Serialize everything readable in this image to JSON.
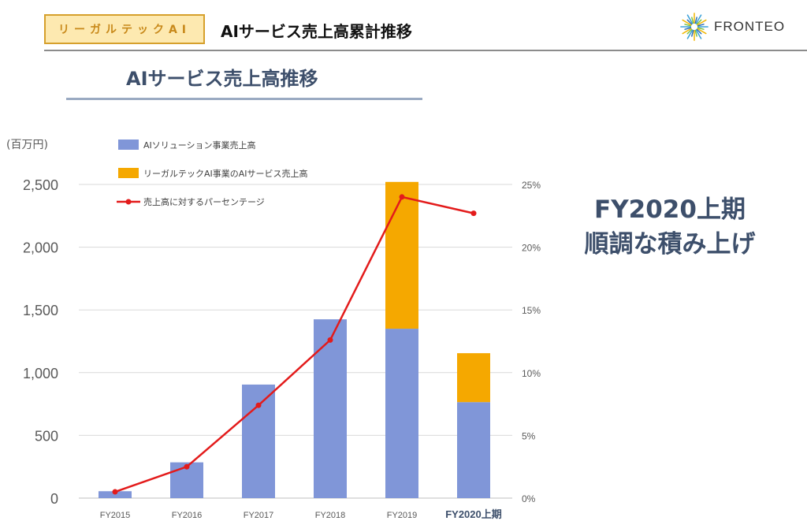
{
  "header": {
    "badge": "リーガルテックAI",
    "title": "AIサービス売上高累計推移",
    "logo_text": "FRONTEO",
    "logo_icon": "starburst-logo-icon"
  },
  "section_title": "AIサービス売上高推移",
  "callout": {
    "line1": "FY2020上期",
    "line2": "順調な積み上げ"
  },
  "colors": {
    "ai_solution": "#8096d8",
    "legaltech": "#f5a800",
    "percentage": "#e31b1b",
    "text_dark": "#3d4f6b"
  },
  "chart_data": {
    "type": "bar",
    "stacked": true,
    "unit_label": "(百万円)",
    "categories": [
      "FY2015",
      "FY2016",
      "FY2017",
      "FY2018",
      "FY2019",
      "FY2020上期"
    ],
    "series": [
      {
        "name": "AIソリューション事業売上高",
        "type": "bar",
        "axis": "left",
        "values": [
          55,
          285,
          905,
          1425,
          1350,
          765
        ]
      },
      {
        "name": "リーガルテックAI事業のAIサービス売上高",
        "type": "bar",
        "axis": "left",
        "values": [
          0,
          0,
          0,
          0,
          1170,
          390
        ]
      },
      {
        "name": "売上高に対するパーセンテージ",
        "type": "line",
        "axis": "right",
        "values": [
          0.5,
          2.5,
          7.4,
          12.6,
          24.0,
          22.7
        ]
      }
    ],
    "y_left": {
      "min": 0,
      "max": 2500,
      "ticks": [
        0,
        500,
        1000,
        1500,
        2000,
        2500
      ],
      "tick_labels": [
        "0",
        "500",
        "1,000",
        "1,500",
        "2,000",
        "2,500"
      ]
    },
    "y_right": {
      "min": 0,
      "max": 25,
      "ticks": [
        0,
        5,
        10,
        15,
        20,
        25
      ],
      "tick_labels": [
        "0%",
        "5%",
        "10%",
        "15%",
        "20%",
        "25%"
      ]
    },
    "grid": true,
    "legend_position": "top-left"
  }
}
